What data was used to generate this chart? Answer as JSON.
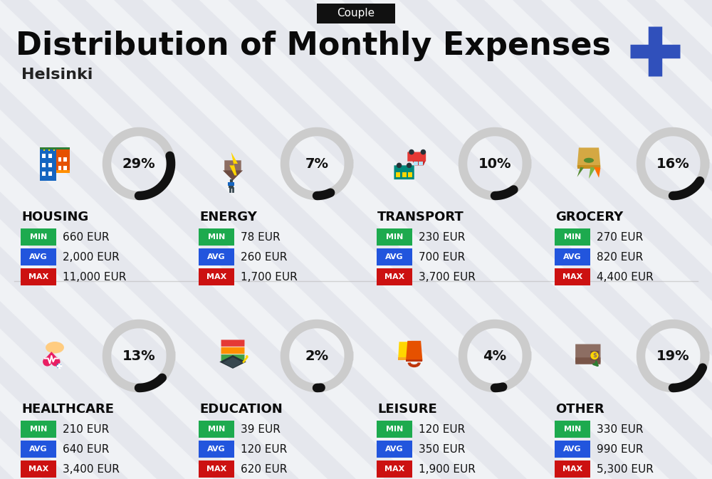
{
  "title": "Distribution of Monthly Expenses",
  "subtitle": "Helsinki",
  "tag": "Couple",
  "bg_color": "#f0f2f5",
  "title_color": "#0a0a0a",
  "subtitle_color": "#222222",
  "tag_bg": "#111111",
  "tag_text": "#ffffff",
  "plus_color": "#3050bb",
  "categories": [
    {
      "name": "HOUSING",
      "pct": 29,
      "min_val": "660 EUR",
      "avg_val": "2,000 EUR",
      "max_val": "11,000 EUR",
      "row": 0,
      "col": 0
    },
    {
      "name": "ENERGY",
      "pct": 7,
      "min_val": "78 EUR",
      "avg_val": "260 EUR",
      "max_val": "1,700 EUR",
      "row": 0,
      "col": 1
    },
    {
      "name": "TRANSPORT",
      "pct": 10,
      "min_val": "230 EUR",
      "avg_val": "700 EUR",
      "max_val": "3,700 EUR",
      "row": 0,
      "col": 2
    },
    {
      "name": "GROCERY",
      "pct": 16,
      "min_val": "270 EUR",
      "avg_val": "820 EUR",
      "max_val": "4,400 EUR",
      "row": 0,
      "col": 3
    },
    {
      "name": "HEALTHCARE",
      "pct": 13,
      "min_val": "210 EUR",
      "avg_val": "640 EUR",
      "max_val": "3,400 EUR",
      "row": 1,
      "col": 0
    },
    {
      "name": "EDUCATION",
      "pct": 2,
      "min_val": "39 EUR",
      "avg_val": "120 EUR",
      "max_val": "620 EUR",
      "row": 1,
      "col": 1
    },
    {
      "name": "LEISURE",
      "pct": 4,
      "min_val": "120 EUR",
      "avg_val": "350 EUR",
      "max_val": "1,900 EUR",
      "row": 1,
      "col": 2
    },
    {
      "name": "OTHER",
      "pct": 19,
      "min_val": "330 EUR",
      "avg_val": "990 EUR",
      "max_val": "5,300 EUR",
      "row": 1,
      "col": 3
    }
  ],
  "min_color": "#1daa4e",
  "avg_color": "#2255dd",
  "max_color": "#cc1111",
  "label_fg": "#ffffff",
  "value_color": "#111111",
  "circle_bg": "#cccccc",
  "arc_color": "#111111",
  "stripe_color": "#c8cad8"
}
